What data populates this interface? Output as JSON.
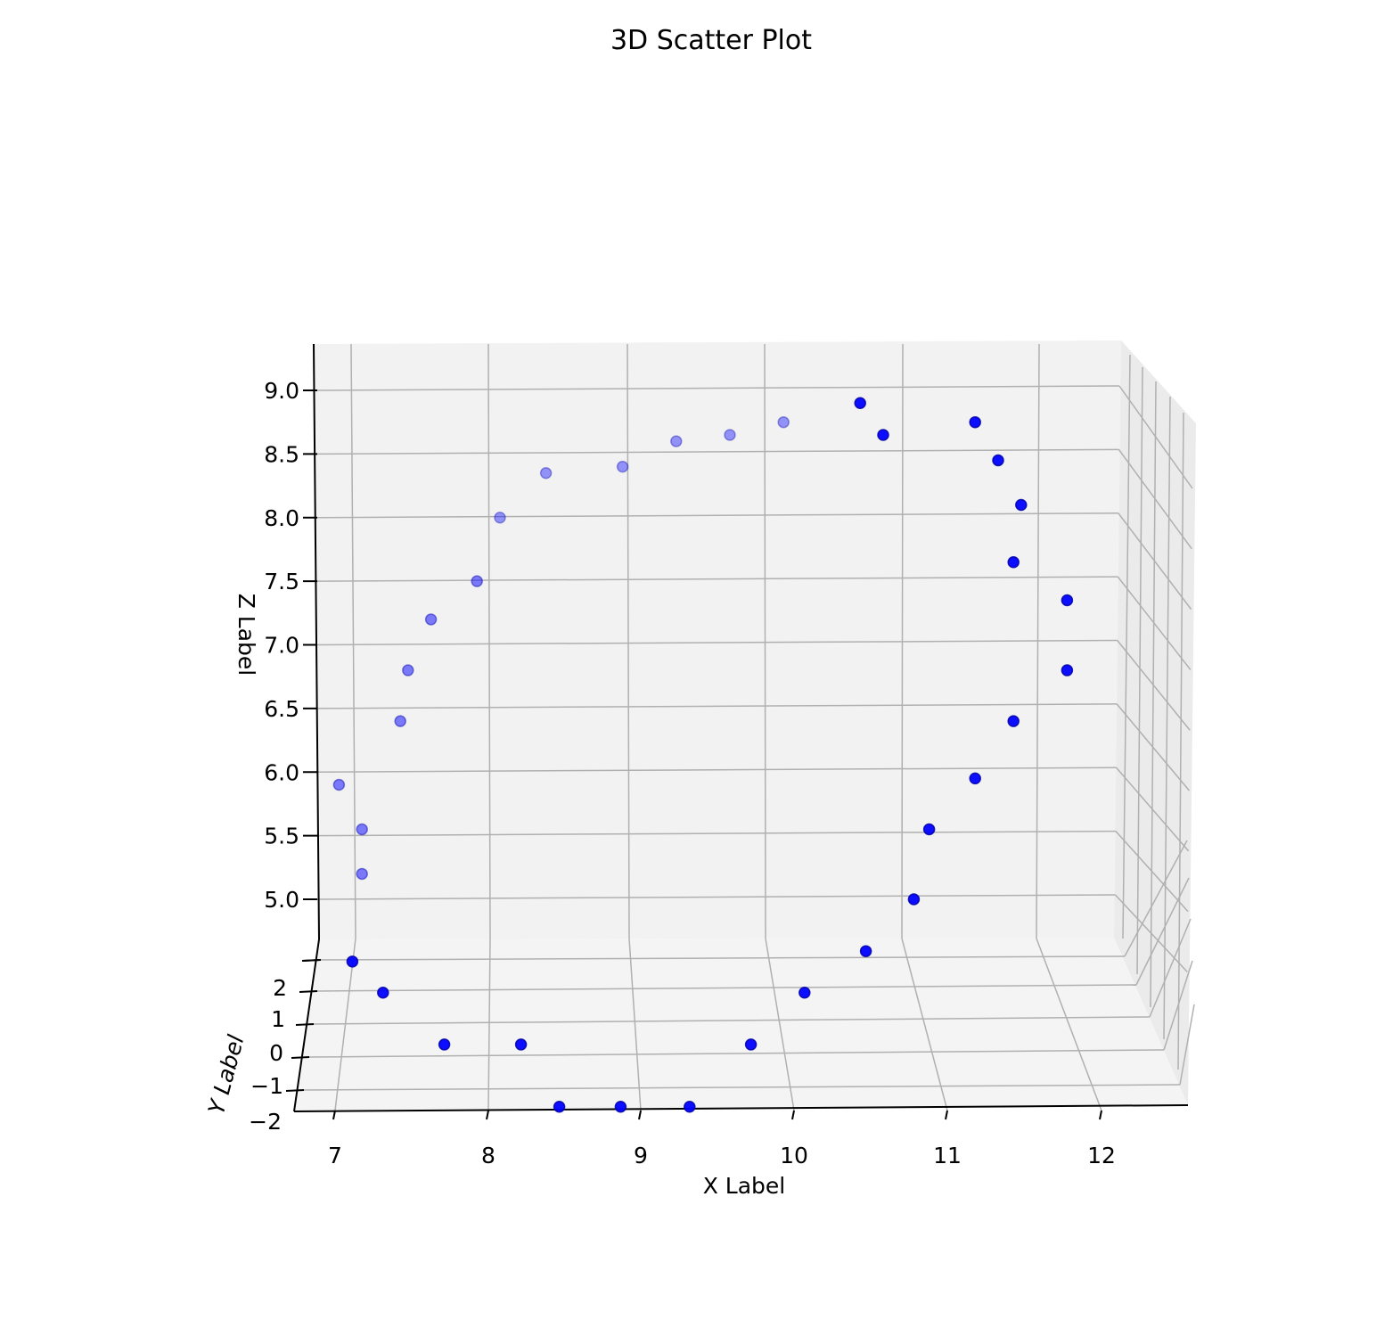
{
  "chart_data": {
    "type": "scatter",
    "title": "3D Scatter Plot",
    "xlabel": "X Label",
    "ylabel": "Y Label",
    "zlabel": "Z Label",
    "xticks": [
      "7",
      "8",
      "9",
      "10",
      "11",
      "12"
    ],
    "yticks": [
      "−2",
      "−1",
      "0",
      "1",
      "2"
    ],
    "zticks": [
      "5.0",
      "5.5",
      "6.0",
      "6.5",
      "7.0",
      "7.5",
      "8.0",
      "8.5",
      "9.0"
    ],
    "grid": true,
    "marker_color": "#0000ff",
    "pane_color": "#f2f2f2",
    "grid_color": "#b0b0b0",
    "points": [
      {
        "x": 7.2,
        "z": 4.7
      },
      {
        "x": 7.4,
        "z": 4.55
      },
      {
        "x": 7.8,
        "z": 4.3
      },
      {
        "x": 8.3,
        "z": 4.3
      },
      {
        "x": 8.55,
        "z": 4.0
      },
      {
        "x": 8.95,
        "z": 4.0
      },
      {
        "x": 9.4,
        "z": 4.0
      },
      {
        "x": 9.8,
        "z": 4.3
      },
      {
        "x": 10.15,
        "z": 4.55
      },
      {
        "x": 10.55,
        "z": 4.75
      },
      {
        "x": 10.95,
        "z": 5.0
      },
      {
        "x": 11.05,
        "z": 5.55
      },
      {
        "x": 11.35,
        "z": 5.95
      },
      {
        "x": 11.6,
        "z": 6.4
      },
      {
        "x": 11.95,
        "z": 6.8
      },
      {
        "x": 11.95,
        "z": 7.35
      },
      {
        "x": 11.6,
        "z": 7.65
      },
      {
        "x": 11.65,
        "z": 8.1
      },
      {
        "x": 11.5,
        "z": 8.45
      },
      {
        "x": 11.35,
        "z": 8.75
      },
      {
        "x": 10.75,
        "z": 8.65
      },
      {
        "x": 10.6,
        "z": 8.9
      },
      {
        "x": 10.1,
        "z": 8.75
      },
      {
        "x": 9.75,
        "z": 8.65
      },
      {
        "x": 9.4,
        "z": 8.6
      },
      {
        "x": 9.05,
        "z": 8.4
      },
      {
        "x": 8.55,
        "z": 8.35
      },
      {
        "x": 8.25,
        "z": 8.0
      },
      {
        "x": 8.1,
        "z": 7.5
      },
      {
        "x": 7.8,
        "z": 7.2
      },
      {
        "x": 7.65,
        "z": 6.8
      },
      {
        "x": 7.6,
        "z": 6.4
      },
      {
        "x": 7.2,
        "z": 5.9
      },
      {
        "x": 7.35,
        "z": 5.55
      },
      {
        "x": 7.35,
        "z": 5.2
      }
    ]
  }
}
